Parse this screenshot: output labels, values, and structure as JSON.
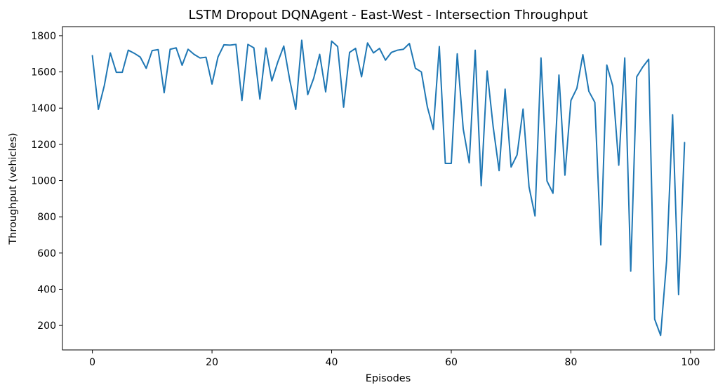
{
  "chart_data": {
    "type": "line",
    "title": "LSTM Dropout DQNAgent - East-West - Intersection Throughput",
    "xlabel": "Episodes",
    "ylabel": "Throughput (vehicles)",
    "xlim": [
      -5,
      104
    ],
    "ylim": [
      65,
      1850
    ],
    "x_ticks": [
      0,
      20,
      40,
      60,
      80,
      100
    ],
    "y_ticks": [
      200,
      400,
      600,
      800,
      1000,
      1200,
      1400,
      1600,
      1800
    ],
    "grid": false,
    "legend": "none",
    "series": [
      {
        "color": "#1f77b4",
        "x": [
          0,
          1,
          2,
          3,
          4,
          5,
          6,
          7,
          8,
          9,
          10,
          11,
          12,
          13,
          14,
          15,
          16,
          17,
          18,
          19,
          20,
          21,
          22,
          23,
          24,
          25,
          26,
          27,
          28,
          29,
          30,
          31,
          32,
          33,
          34,
          35,
          36,
          37,
          38,
          39,
          40,
          41,
          42,
          43,
          44,
          45,
          46,
          47,
          48,
          49,
          50,
          51,
          52,
          53,
          54,
          55,
          56,
          57,
          58,
          59,
          60,
          61,
          62,
          63,
          64,
          65,
          66,
          67,
          68,
          69,
          70,
          71,
          72,
          73,
          74,
          75,
          76,
          77,
          78,
          79,
          80,
          81,
          82,
          83,
          84,
          85,
          86,
          87,
          88,
          89,
          90,
          91,
          92,
          93,
          94,
          95,
          96,
          97,
          98,
          99
        ],
        "values": [
          1690,
          1393,
          1525,
          1705,
          1598,
          1598,
          1720,
          1703,
          1682,
          1620,
          1718,
          1723,
          1485,
          1725,
          1733,
          1637,
          1725,
          1697,
          1677,
          1681,
          1533,
          1683,
          1750,
          1748,
          1752,
          1442,
          1752,
          1733,
          1450,
          1732,
          1550,
          1655,
          1743,
          1555,
          1393,
          1775,
          1475,
          1565,
          1697,
          1490,
          1770,
          1740,
          1405,
          1708,
          1730,
          1573,
          1760,
          1705,
          1730,
          1665,
          1708,
          1720,
          1725,
          1757,
          1620,
          1600,
          1407,
          1283,
          1740,
          1095,
          1095,
          1700,
          1285,
          1098,
          1720,
          972,
          1605,
          1298,
          1055,
          1505,
          1075,
          1142,
          1395,
          965,
          805,
          1677,
          998,
          930,
          1583,
          1030,
          1442,
          1510,
          1695,
          1493,
          1432,
          645,
          1638,
          1522,
          1085,
          1677,
          500,
          1573,
          1627,
          1670,
          235,
          145,
          557,
          1363,
          370,
          1210
        ]
      }
    ]
  }
}
